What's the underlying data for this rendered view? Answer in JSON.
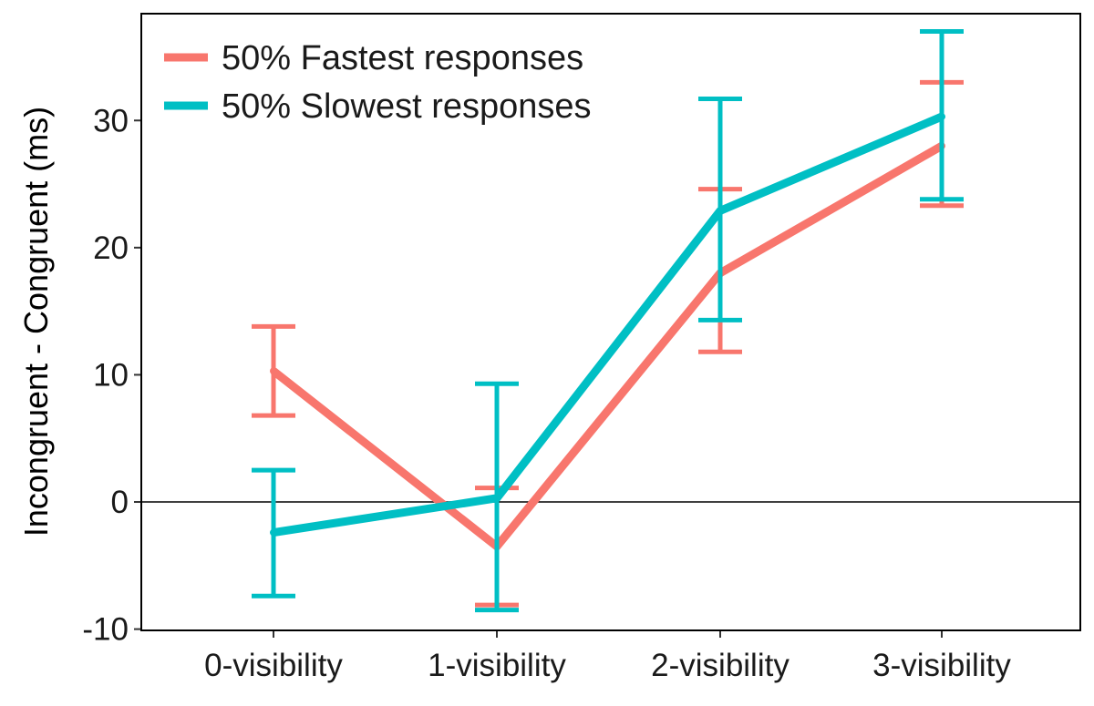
{
  "chart_data": {
    "type": "line",
    "title": "",
    "xlabel": "",
    "ylabel": "Incongruent - Congruent (ms)",
    "categories": [
      "0-visibility",
      "1-visibility",
      "2-visibility",
      "3-visibility"
    ],
    "ylim": [
      -10.1,
      38.4
    ],
    "yticks": [
      -10,
      0,
      10,
      20,
      30
    ],
    "ytick_labels": [
      "-10",
      "0",
      "10",
      "20",
      "30"
    ],
    "reference_line_y": 0,
    "grid": false,
    "legend_position": "top-left",
    "series": [
      {
        "name": "50% Fastest responses",
        "color": "#F8766D",
        "values": [
          10.3,
          -3.5,
          18.0,
          28.0
        ],
        "error_upper": [
          13.8,
          1.1,
          24.6,
          33.0
        ],
        "error_lower": [
          6.8,
          -8.1,
          11.8,
          23.3
        ]
      },
      {
        "name": "50% Slowest responses",
        "color": "#00BFC4",
        "values": [
          -2.4,
          0.3,
          22.9,
          30.3
        ],
        "error_upper": [
          2.5,
          9.3,
          31.7,
          37.0
        ],
        "error_lower": [
          -7.4,
          -8.5,
          14.3,
          23.8
        ]
      }
    ]
  }
}
